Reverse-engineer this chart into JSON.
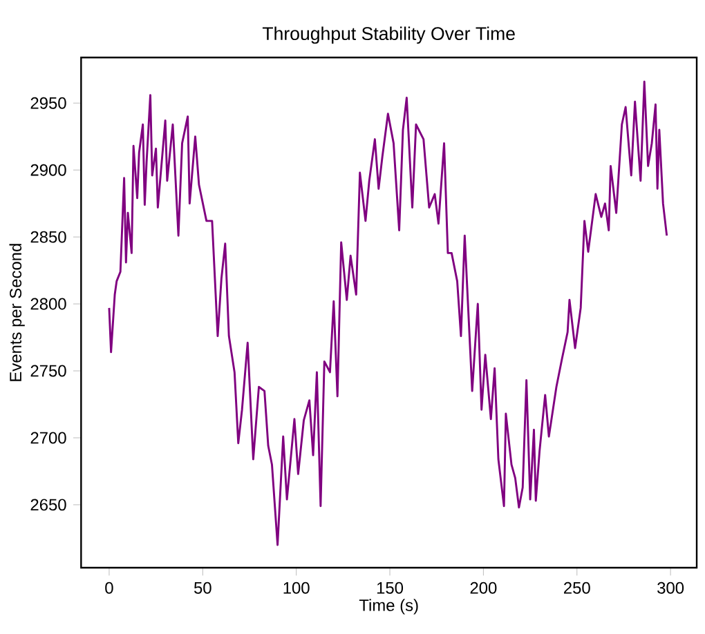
{
  "chart_data": {
    "type": "line",
    "title": "Throughput Stability Over Time",
    "xlabel": "Time (s)",
    "ylabel": "Events per Second",
    "xlim": [
      -15,
      314
    ],
    "ylim": [
      2603,
      2984
    ],
    "xticks": [
      0,
      50,
      100,
      150,
      200,
      250,
      300
    ],
    "yticks": [
      2650,
      2700,
      2750,
      2800,
      2850,
      2900,
      2950
    ],
    "grid": false,
    "marker": "none",
    "line_style": "solid",
    "series": [
      {
        "color": "#800080",
        "x": [
          0,
          1,
          3,
          4,
          6,
          8,
          9,
          10,
          12,
          13,
          15,
          16,
          18,
          19,
          20,
          22,
          23,
          25,
          26,
          30,
          31,
          34,
          37,
          39,
          42,
          43,
          46,
          48,
          52,
          55,
          58,
          60,
          62,
          64,
          67,
          69,
          71,
          74,
          77,
          80,
          83,
          85,
          87,
          90,
          93,
          95,
          99,
          101,
          104,
          107,
          109,
          111,
          113,
          115,
          118,
          120,
          122,
          124,
          127,
          129,
          132,
          134,
          137,
          139,
          142,
          144,
          146,
          149,
          152,
          155,
          157,
          159,
          162,
          164,
          168,
          171,
          174,
          176,
          179,
          181,
          183,
          186,
          188,
          190,
          194,
          197,
          199,
          201,
          204,
          206,
          208,
          211,
          212,
          215,
          217,
          219,
          221,
          223,
          225,
          227,
          228,
          230,
          233,
          235,
          239,
          242,
          245,
          246,
          249,
          252,
          254,
          256,
          260,
          263,
          265,
          267,
          268,
          271,
          274,
          276,
          279,
          281,
          284,
          286,
          288,
          290,
          292,
          293,
          294,
          296,
          298
        ],
        "values": [
          2797,
          2764,
          2807,
          2817,
          2824,
          2894,
          2831,
          2868,
          2838,
          2918,
          2879,
          2913,
          2934,
          2874,
          2906,
          2956,
          2896,
          2916,
          2872,
          2937,
          2892,
          2934,
          2851,
          2920,
          2940,
          2875,
          2925,
          2889,
          2862,
          2862,
          2776,
          2819,
          2845,
          2776,
          2749,
          2696,
          2721,
          2771,
          2684,
          2738,
          2735,
          2694,
          2680,
          2620,
          2701,
          2654,
          2714,
          2673,
          2713,
          2728,
          2687,
          2749,
          2649,
          2757,
          2749,
          2802,
          2731,
          2846,
          2803,
          2836,
          2807,
          2898,
          2862,
          2892,
          2923,
          2886,
          2910,
          2942,
          2920,
          2855,
          2930,
          2954,
          2872,
          2934,
          2923,
          2872,
          2882,
          2860,
          2920,
          2838,
          2838,
          2817,
          2776,
          2851,
          2735,
          2800,
          2721,
          2762,
          2714,
          2752,
          2684,
          2649,
          2718,
          2680,
          2670,
          2648,
          2663,
          2743,
          2654,
          2706,
          2653,
          2690,
          2732,
          2701,
          2738,
          2759,
          2779,
          2803,
          2767,
          2797,
          2862,
          2839,
          2882,
          2865,
          2875,
          2855,
          2903,
          2868,
          2934,
          2947,
          2896,
          2951,
          2892,
          2966,
          2903,
          2920,
          2949,
          2886,
          2930,
          2875,
          2851
        ]
      }
    ]
  }
}
